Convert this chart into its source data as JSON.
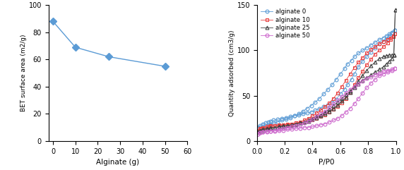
{
  "left_chart": {
    "x": [
      0,
      10,
      25,
      50
    ],
    "y": [
      88,
      69,
      62,
      55
    ],
    "color": "#5b9bd5",
    "marker": "D",
    "markersize": 5,
    "xlabel": "Alginate (g)",
    "ylabel": "BET surface area (m2/g)",
    "xlim": [
      -2,
      60
    ],
    "ylim": [
      0,
      100
    ],
    "xticks": [
      0,
      10,
      20,
      30,
      40,
      50,
      60
    ],
    "yticks": [
      0,
      20,
      40,
      60,
      80,
      100
    ]
  },
  "right_chart": {
    "xlabel": "P/P0",
    "ylabel": "Quantity adsorbed (cm3/g)",
    "xlim": [
      0,
      1.0
    ],
    "ylim": [
      0,
      150
    ],
    "xticks": [
      0,
      0.2,
      0.4,
      0.6,
      0.8,
      1.0
    ],
    "yticks": [
      0,
      50,
      100,
      150
    ],
    "series": [
      {
        "label": "alginate 0",
        "color": "#5b9bd5",
        "marker": "o",
        "adsorption_x": [
          0.005,
          0.02,
          0.04,
          0.06,
          0.08,
          0.1,
          0.12,
          0.15,
          0.18,
          0.21,
          0.24,
          0.27,
          0.3,
          0.33,
          0.36,
          0.39,
          0.42,
          0.45,
          0.48,
          0.51,
          0.54,
          0.57,
          0.6,
          0.63,
          0.65,
          0.68,
          0.7,
          0.73,
          0.76,
          0.79,
          0.82,
          0.85,
          0.88,
          0.91,
          0.93,
          0.95,
          0.97,
          0.99
        ],
        "adsorption_y": [
          15,
          17,
          19,
          20,
          21,
          22,
          23,
          24,
          25,
          26,
          27,
          28,
          29,
          30,
          31,
          32,
          34,
          36,
          38,
          40,
          43,
          46,
          52,
          57,
          62,
          68,
          74,
          82,
          88,
          93,
          98,
          103,
          107,
          110,
          113,
          116,
          119,
          122
        ],
        "desorption_x": [
          0.99,
          0.97,
          0.95,
          0.93,
          0.91,
          0.88,
          0.85,
          0.82,
          0.79,
          0.76,
          0.73,
          0.7,
          0.68,
          0.65,
          0.63,
          0.6,
          0.57,
          0.54,
          0.51,
          0.48,
          0.45,
          0.42,
          0.39,
          0.36,
          0.33,
          0.3,
          0.27,
          0.24,
          0.21,
          0.18,
          0.15,
          0.12,
          0.1,
          0.08,
          0.06,
          0.04,
          0.02,
          0.005
        ],
        "desorption_y": [
          122,
          120,
          118,
          116,
          114,
          112,
          109,
          106,
          103,
          100,
          97,
          93,
          89,
          85,
          80,
          74,
          68,
          62,
          57,
          52,
          47,
          43,
          39,
          36,
          33,
          30,
          28,
          26,
          24,
          23,
          21,
          20,
          19,
          18,
          17,
          16,
          15,
          15
        ]
      },
      {
        "label": "alginate 10",
        "color": "#e84040",
        "marker": "s",
        "adsorption_x": [
          0.005,
          0.02,
          0.04,
          0.07,
          0.1,
          0.13,
          0.16,
          0.19,
          0.22,
          0.25,
          0.28,
          0.31,
          0.34,
          0.37,
          0.4,
          0.43,
          0.46,
          0.49,
          0.52,
          0.55,
          0.58,
          0.61,
          0.64,
          0.67,
          0.7,
          0.73,
          0.76,
          0.79,
          0.82,
          0.85,
          0.88,
          0.91,
          0.94,
          0.96,
          0.98,
          0.99
        ],
        "adsorption_y": [
          12,
          14,
          15,
          16,
          17,
          17,
          18,
          18,
          19,
          19,
          20,
          20,
          21,
          22,
          23,
          25,
          27,
          29,
          32,
          35,
          38,
          42,
          47,
          54,
          62,
          70,
          77,
          84,
          90,
          96,
          100,
          104,
          108,
          112,
          115,
          118
        ],
        "desorption_x": [
          0.99,
          0.98,
          0.96,
          0.94,
          0.91,
          0.88,
          0.85,
          0.82,
          0.79,
          0.76,
          0.73,
          0.7,
          0.67,
          0.64,
          0.61,
          0.58,
          0.55,
          0.52,
          0.49,
          0.46,
          0.43,
          0.4,
          0.37,
          0.34,
          0.31,
          0.28,
          0.25,
          0.22,
          0.19,
          0.16,
          0.13,
          0.1,
          0.07,
          0.04,
          0.02,
          0.005
        ],
        "desorption_y": [
          118,
          116,
          114,
          112,
          110,
          107,
          104,
          101,
          97,
          92,
          87,
          81,
          74,
          67,
          60,
          53,
          47,
          42,
          38,
          34,
          31,
          28,
          25,
          23,
          21,
          20,
          19,
          18,
          18,
          17,
          17,
          16,
          15,
          14,
          13,
          12
        ]
      },
      {
        "label": "alginate 25",
        "color": "#404040",
        "marker": "^",
        "adsorption_x": [
          0.005,
          0.02,
          0.04,
          0.07,
          0.1,
          0.13,
          0.16,
          0.19,
          0.22,
          0.25,
          0.28,
          0.31,
          0.34,
          0.37,
          0.4,
          0.43,
          0.46,
          0.49,
          0.52,
          0.55,
          0.58,
          0.61,
          0.64,
          0.67,
          0.7,
          0.73,
          0.76,
          0.79,
          0.82,
          0.85,
          0.88,
          0.91,
          0.93,
          0.95,
          0.97,
          0.985,
          0.995
        ],
        "adsorption_y": [
          10,
          12,
          13,
          14,
          15,
          15,
          16,
          17,
          17,
          18,
          19,
          20,
          21,
          22,
          24,
          26,
          28,
          30,
          33,
          36,
          40,
          44,
          48,
          54,
          60,
          66,
          72,
          78,
          83,
          87,
          91,
          93,
          94,
          95,
          95,
          95,
          145
        ],
        "desorption_x": [
          0.995,
          0.985,
          0.97,
          0.95,
          0.93,
          0.91,
          0.88,
          0.85,
          0.82,
          0.79,
          0.76,
          0.73,
          0.7,
          0.67,
          0.64,
          0.61,
          0.58,
          0.55,
          0.52,
          0.49,
          0.46,
          0.43,
          0.4,
          0.37,
          0.34,
          0.31,
          0.28,
          0.25,
          0.22,
          0.19,
          0.16,
          0.13,
          0.1,
          0.07,
          0.04,
          0.02,
          0.005
        ],
        "desorption_y": [
          145,
          95,
          91,
          88,
          85,
          82,
          79,
          76,
          73,
          70,
          67,
          63,
          59,
          55,
          51,
          47,
          43,
          39,
          35,
          32,
          29,
          27,
          25,
          23,
          21,
          20,
          19,
          18,
          17,
          16,
          16,
          15,
          14,
          13,
          12,
          11,
          10
        ]
      },
      {
        "label": "alginate 50",
        "color": "#cc66cc",
        "marker": "o",
        "adsorption_x": [
          0.005,
          0.02,
          0.04,
          0.07,
          0.1,
          0.13,
          0.16,
          0.19,
          0.22,
          0.25,
          0.28,
          0.31,
          0.34,
          0.37,
          0.4,
          0.43,
          0.46,
          0.49,
          0.52,
          0.55,
          0.58,
          0.61,
          0.64,
          0.67,
          0.7,
          0.73,
          0.76,
          0.79,
          0.82,
          0.85,
          0.88,
          0.91,
          0.94,
          0.97,
          0.99
        ],
        "adsorption_y": [
          8,
          9,
          10,
          10,
          11,
          11,
          12,
          12,
          13,
          13,
          14,
          14,
          15,
          15,
          16,
          17,
          18,
          19,
          21,
          23,
          25,
          28,
          32,
          36,
          41,
          47,
          53,
          59,
          64,
          68,
          72,
          74,
          76,
          78,
          80
        ],
        "desorption_x": [
          0.99,
          0.97,
          0.94,
          0.91,
          0.88,
          0.85,
          0.82,
          0.79,
          0.76,
          0.73,
          0.7,
          0.67,
          0.64,
          0.61,
          0.58,
          0.55,
          0.52,
          0.49,
          0.46,
          0.43,
          0.4,
          0.37,
          0.34,
          0.31,
          0.28,
          0.25,
          0.22,
          0.19,
          0.16,
          0.13,
          0.1,
          0.07,
          0.04,
          0.02,
          0.005
        ],
        "desorption_y": [
          80,
          79,
          78,
          77,
          75,
          73,
          71,
          69,
          66,
          63,
          60,
          57,
          53,
          49,
          45,
          41,
          37,
          33,
          30,
          27,
          24,
          22,
          20,
          18,
          17,
          16,
          15,
          14,
          13,
          12,
          11,
          11,
          10,
          9,
          8
        ]
      }
    ]
  }
}
